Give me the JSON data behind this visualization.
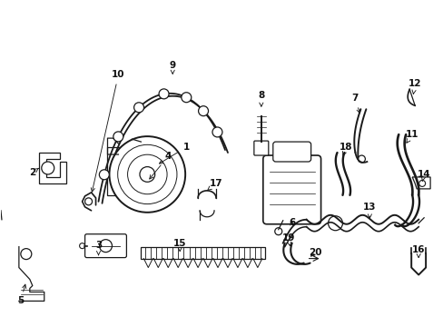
{
  "bg_color": "#ffffff",
  "line_color": "#1a1a1a",
  "lw": 0.9,
  "fig_width": 4.89,
  "fig_height": 3.6,
  "dpi": 100
}
